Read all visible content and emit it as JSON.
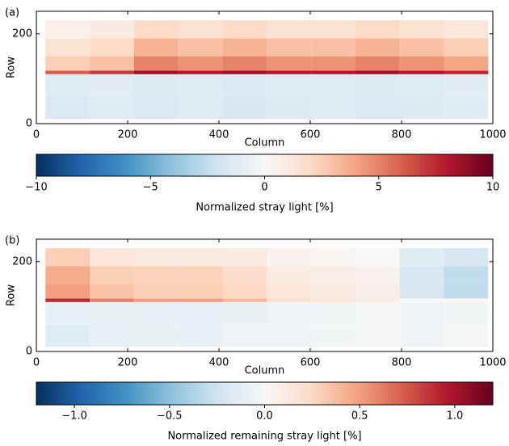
{
  "chart_data": [
    {
      "type": "heatmap",
      "panel_label": "(a)",
      "xlabel": "Column",
      "ylabel": "Row",
      "xlim": [
        0,
        1000
      ],
      "ylim": [
        0,
        250
      ],
      "xticks": [
        0,
        200,
        400,
        600,
        800,
        1000
      ],
      "yticks": [
        0,
        200
      ],
      "xbins": [
        20,
        117,
        214,
        311,
        408,
        505,
        602,
        699,
        796,
        893,
        990
      ],
      "ybins": [
        10,
        60,
        110,
        118,
        150,
        190,
        230
      ],
      "values": [
        [
          -1.5,
          -1.2,
          -1.5,
          -1.3,
          -1.6,
          -1.4,
          -1.3,
          -1.5,
          -1.4,
          -1.2
        ],
        [
          -1.3,
          -1.1,
          -1.4,
          -1.2,
          -1.5,
          -1.3,
          -1.2,
          -1.4,
          -1.3,
          -1.1
        ],
        [
          6,
          7,
          8.5,
          8,
          8.5,
          8,
          8,
          8.5,
          8,
          7.5
        ],
        [
          2.5,
          3,
          5,
          4.5,
          5,
          4.5,
          4.5,
          5,
          4.5,
          4
        ],
        [
          1.5,
          2,
          3.5,
          3,
          3.5,
          3,
          3,
          3.5,
          3,
          2.5
        ],
        [
          0.5,
          0.8,
          2,
          1.5,
          2,
          1.5,
          1.5,
          2,
          1.5,
          1.2
        ]
      ],
      "colormap": "RdBu_r",
      "clim": [
        -10,
        10
      ],
      "cticks": [
        {
          "value": -10,
          "label": "−10"
        },
        {
          "value": -5,
          "label": "−5"
        },
        0,
        5,
        10
      ],
      "colorbar_label": "Normalized stray light [%]"
    },
    {
      "type": "heatmap",
      "panel_label": "(b)",
      "xlabel": "Column",
      "ylabel": "Row",
      "xlim": [
        0,
        1000
      ],
      "ylim": [
        0,
        250
      ],
      "xticks": [
        0,
        200,
        400,
        600,
        800,
        1000
      ],
      "yticks": [
        0,
        200
      ],
      "xbins": [
        20,
        117,
        214,
        311,
        408,
        505,
        602,
        699,
        796,
        893,
        990
      ],
      "ybins": [
        10,
        60,
        110,
        118,
        150,
        190,
        230
      ],
      "values": [
        [
          -0.15,
          -0.1,
          -0.08,
          -0.1,
          -0.05,
          -0.05,
          -0.03,
          -0.02,
          -0.05,
          -0.02
        ],
        [
          -0.1,
          -0.08,
          -0.1,
          -0.1,
          -0.08,
          -0.05,
          -0.03,
          -0.02,
          -0.05,
          -0.03
        ],
        [
          0.9,
          0.6,
          0.5,
          0.5,
          0.4,
          0.2,
          0.15,
          0.1,
          0,
          0
        ],
        [
          0.5,
          0.35,
          0.3,
          0.3,
          0.25,
          0.15,
          0.1,
          0.08,
          -0.2,
          -0.3
        ],
        [
          0.45,
          0.3,
          0.28,
          0.28,
          0.22,
          0.1,
          0.08,
          0.05,
          -0.2,
          -0.3
        ],
        [
          0.3,
          0.15,
          0.12,
          0.12,
          0.1,
          0.05,
          0.02,
          0,
          -0.15,
          -0.2
        ]
      ],
      "colormap": "RdBu_r",
      "clim": [
        -1.2,
        1.2
      ],
      "cticks": [
        {
          "value": -1,
          "label": "−1.0"
        },
        {
          "value": -0.5,
          "label": "−0.5"
        },
        {
          "value": 0,
          "label": "0.0"
        },
        {
          "value": 0.5,
          "label": "0.5"
        },
        {
          "value": 1,
          "label": "1.0"
        }
      ],
      "colorbar_label": "Normalized remaining stray light [%]"
    }
  ]
}
